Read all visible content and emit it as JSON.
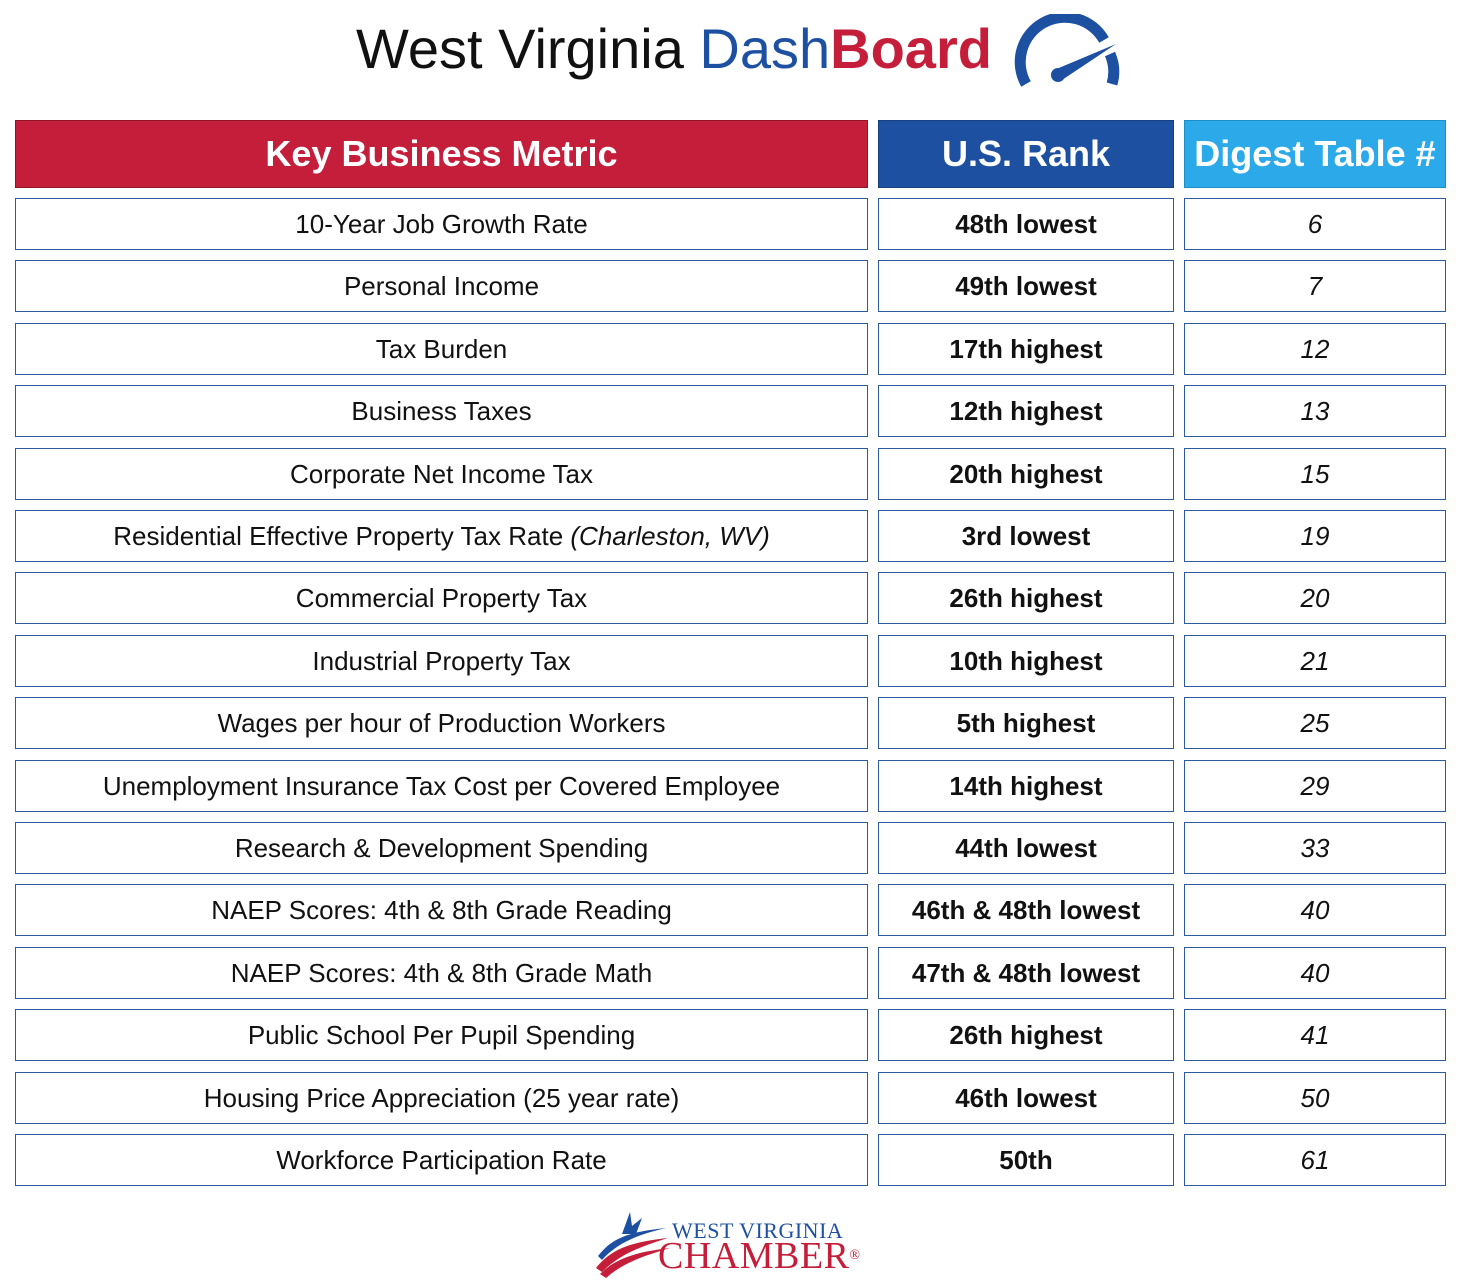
{
  "header": {
    "title_part1": "West Virginia",
    "title_part2": "Dash",
    "title_part3": "Board",
    "icon": "speedometer-gauge-icon"
  },
  "table": {
    "columns": [
      "Key Business Metric",
      "U.S. Rank",
      "Digest Table #"
    ],
    "rows": [
      {
        "metric": "10-Year Job Growth Rate",
        "note": "",
        "rank": "48th lowest",
        "table": "6"
      },
      {
        "metric": "Personal Income",
        "note": "",
        "rank": "49th lowest",
        "table": "7"
      },
      {
        "metric": "Tax Burden",
        "note": "",
        "rank": "17th highest",
        "table": "12"
      },
      {
        "metric": "Business Taxes",
        "note": "",
        "rank": "12th highest",
        "table": "13"
      },
      {
        "metric": "Corporate Net Income Tax",
        "note": "",
        "rank": "20th highest",
        "table": "15"
      },
      {
        "metric": "Residential Effective Property Tax Rate",
        "note": "(Charleston, WV)",
        "rank": "3rd lowest",
        "table": "19"
      },
      {
        "metric": "Commercial Property Tax",
        "note": "",
        "rank": "26th highest",
        "table": "20"
      },
      {
        "metric": "Industrial Property Tax",
        "note": "",
        "rank": "10th highest",
        "table": "21"
      },
      {
        "metric": "Wages per hour of Production Workers",
        "note": "",
        "rank": "5th highest",
        "table": "25"
      },
      {
        "metric": "Unemployment Insurance Tax Cost per Covered Employee",
        "note": "",
        "rank": "14th highest",
        "table": "29"
      },
      {
        "metric": "Research & Development Spending",
        "note": "",
        "rank": "44th lowest",
        "table": "33"
      },
      {
        "metric": "NAEP Scores: 4th & 8th Grade Reading",
        "note": "",
        "rank": "46th & 48th lowest",
        "table": "40"
      },
      {
        "metric": "NAEP Scores: 4th & 8th Grade Math",
        "note": "",
        "rank": "47th & 48th lowest",
        "table": "40"
      },
      {
        "metric": "Public School Per Pupil Spending",
        "note": "",
        "rank": "26th highest",
        "table": "41"
      },
      {
        "metric": "Housing Price Appreciation (25 year rate)",
        "note": "",
        "rank": "46th lowest",
        "table": "50"
      },
      {
        "metric": "Workforce Participation Rate",
        "note": "",
        "rank": "50th",
        "table": "61"
      }
    ]
  },
  "footer": {
    "logo_line1": "WEST VIRGINIA",
    "logo_line2": "CHAMBER",
    "logo_mark": "®",
    "icon": "flag-swoosh-icon"
  },
  "colors": {
    "red": "#c41e3a",
    "blue": "#1e50a2",
    "light_blue": "#2ba9e8",
    "border": "#2c5aa0"
  }
}
